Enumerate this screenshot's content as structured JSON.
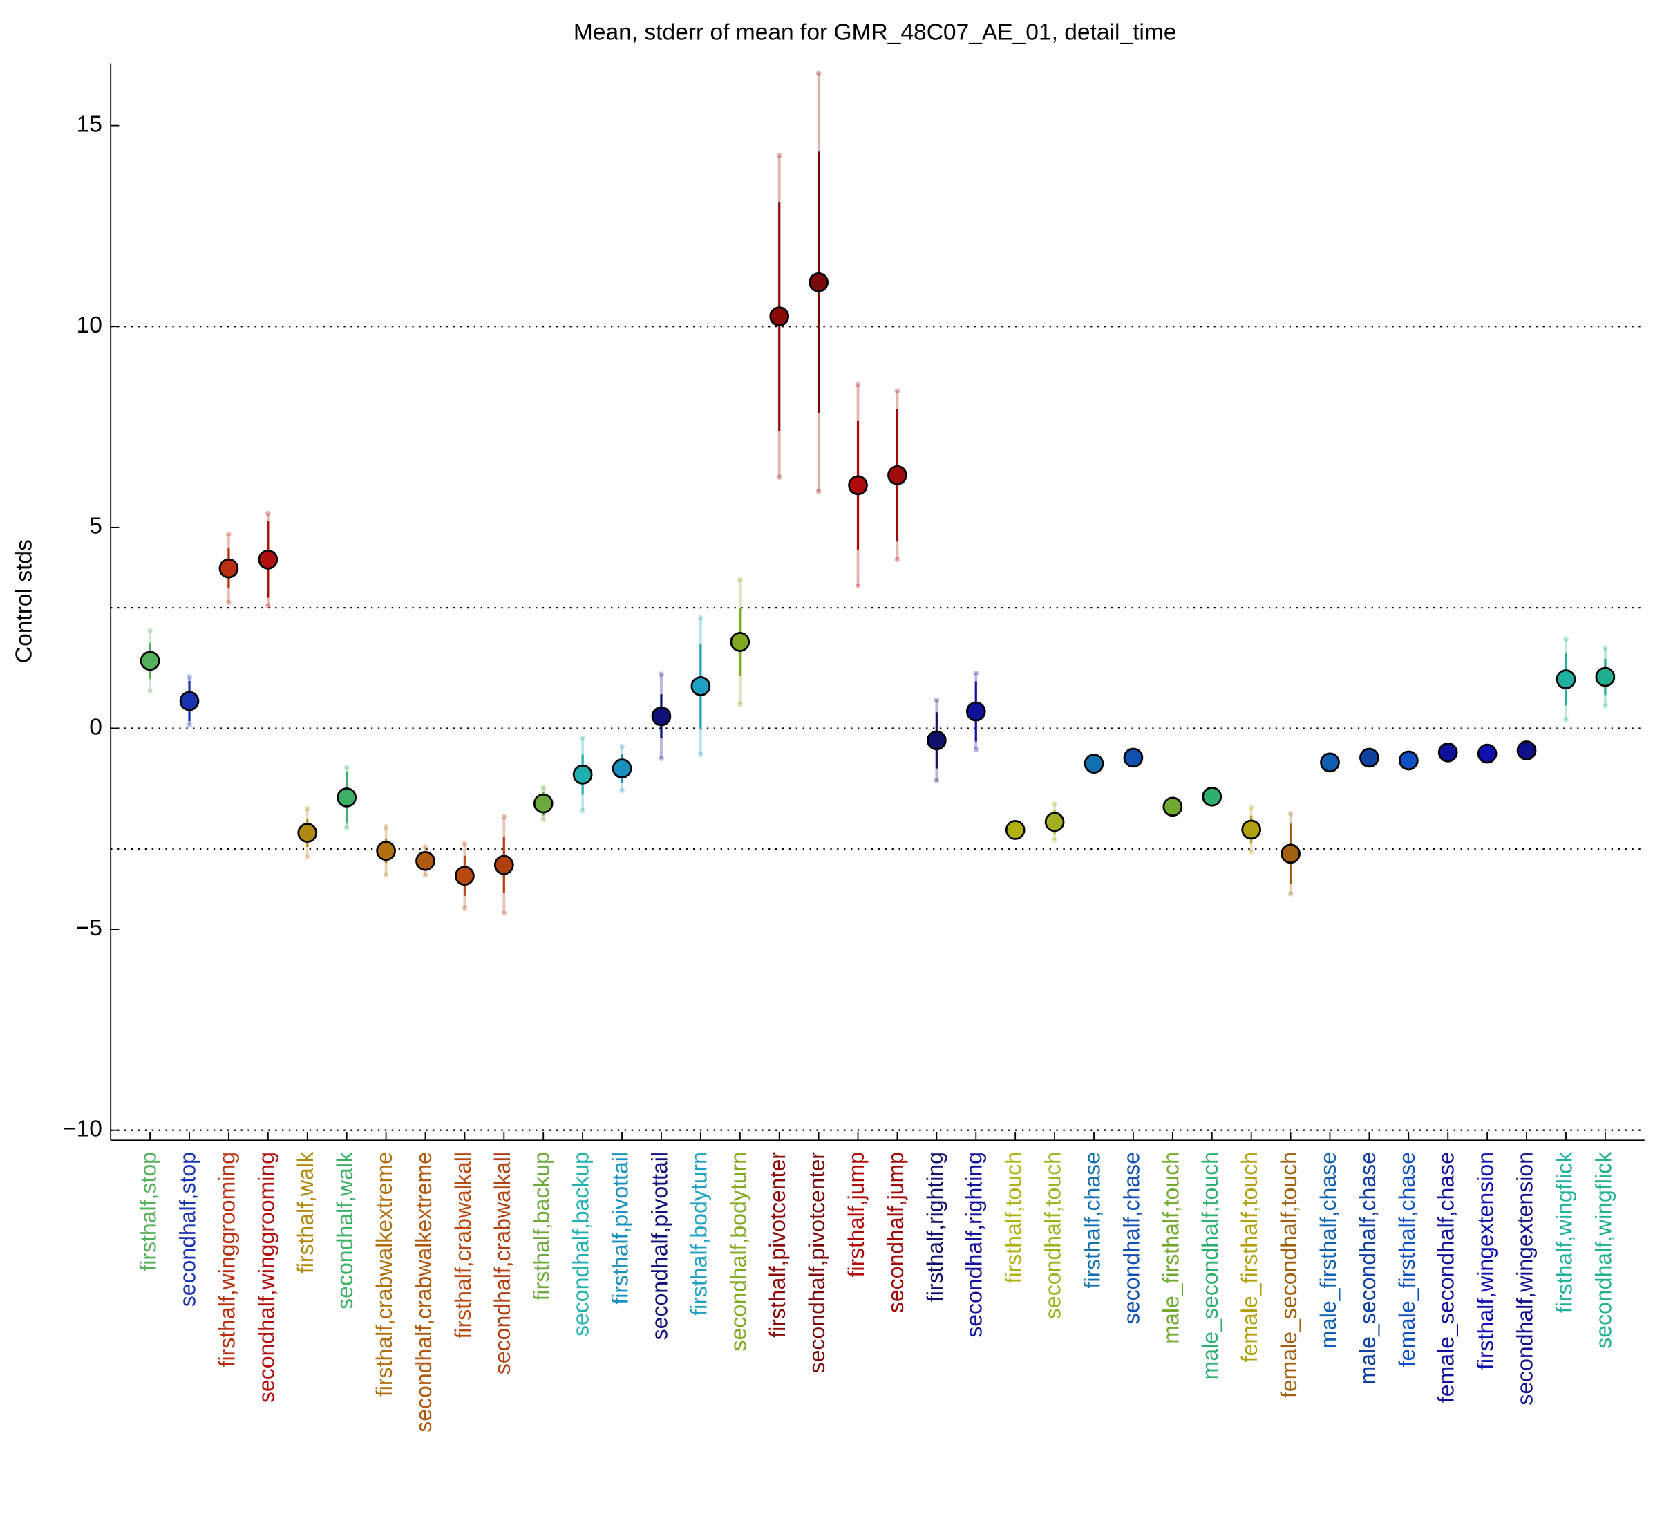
{
  "chart_data": {
    "type": "errorbar",
    "title": "Mean, stderr of mean for GMR_48C07_AE_01, detail_time",
    "ylabel": "Control stds",
    "ylim": [
      -10.25,
      16.55
    ],
    "yticks": [
      15,
      10,
      5,
      {
        "value": 0,
        "label": "0"
      },
      {
        "value": -5,
        "label": "−5"
      },
      {
        "value": -10,
        "label": "−10"
      }
    ],
    "grid_lines": [
      10,
      3,
      0,
      -3,
      -10
    ],
    "categories": [
      "firsthalf,stop",
      "secondhalf,stop",
      "firsthalf,winggrooming",
      "secondhalf,winggrooming",
      "firsthalf,walk",
      "secondhalf,walk",
      "firsthalf,crabwalkextreme",
      "secondhalf,crabwalkextreme",
      "firsthalf,crabwalkall",
      "secondhalf,crabwalkall",
      "firsthalf,backup",
      "secondhalf,backup",
      "firsthalf,pivottail",
      "secondhalf,pivottail",
      "firsthalf,bodyturn",
      "secondhalf,bodyturn",
      "firsthalf,pivotcenter",
      "secondhalf,pivotcenter",
      "firsthalf,jump",
      "secondhalf,jump",
      "firsthalf,righting",
      "secondhalf,righting",
      "firsthalf,touch",
      "secondhalf,touch",
      "firsthalf,chase",
      "secondhalf,chase",
      "male_firsthalf,touch",
      "male_secondhalf,touch",
      "female_firsthalf,touch",
      "female_secondhalf,touch",
      "male_firsthalf,chase",
      "male_secondhalf,chase",
      "female_firsthalf,chase",
      "female_secondhalf,chase",
      "firsthalf,wingextension",
      "secondhalf,wingextension",
      "firsthalf,wingflick",
      "secondhalf,wingflick"
    ],
    "values": [
      1.68,
      0.68,
      3.98,
      4.2,
      -2.6,
      -1.72,
      -3.05,
      -3.3,
      -3.67,
      -3.4,
      -1.87,
      -1.15,
      -1.0,
      0.3,
      1.05,
      2.15,
      10.25,
      11.1,
      6.05,
      6.3,
      -0.3,
      0.42,
      -2.53,
      -2.33,
      -0.88,
      -0.73,
      -1.95,
      -1.7,
      -2.52,
      -3.12,
      -0.85,
      -0.73,
      -0.8,
      -0.6,
      -0.63,
      -0.55,
      1.22,
      1.28
    ],
    "errors": [
      0.45,
      0.5,
      0.5,
      0.95,
      0.35,
      0.65,
      0.3,
      0.2,
      0.5,
      0.7,
      0.3,
      0.5,
      0.35,
      0.55,
      1.05,
      0.85,
      2.85,
      3.25,
      1.6,
      1.65,
      0.7,
      0.75,
      0.1,
      0.3,
      0.05,
      0.05,
      0.05,
      0.05,
      0.35,
      0.75,
      0.05,
      0.05,
      0.05,
      0.05,
      0.05,
      0.05,
      0.65,
      0.45
    ],
    "outer_errors": [
      0.75,
      0.6,
      0.85,
      1.15,
      0.6,
      0.75,
      0.6,
      0.35,
      0.8,
      1.2,
      0.4,
      0.9,
      0.55,
      1.05,
      1.7,
      1.55,
      4.0,
      5.2,
      2.5,
      2.1,
      1.0,
      0.95,
      0.1,
      0.45,
      0.05,
      0.05,
      0.05,
      0.05,
      0.55,
      1.0,
      0.05,
      0.05,
      0.05,
      0.05,
      0.05,
      0.05,
      1.0,
      0.72
    ],
    "colors": [
      "#55b05a",
      "#1a33b0",
      "#b83010",
      "#b01010",
      "#b08a10",
      "#3cb064",
      "#b07010",
      "#b05a10",
      "#b84a10",
      "#b04010",
      "#70a840",
      "#20b0b0",
      "#1a90c0",
      "#10107a",
      "#20a0c0",
      "#80a820",
      "#8a0a0a",
      "#7a0a0a",
      "#b00a0a",
      "#a00a0a",
      "#10106a",
      "#10109a",
      "#b0b010",
      "#a0b020",
      "#1070b0",
      "#1050b0",
      "#70a830",
      "#30b070",
      "#b0a010",
      "#a06010",
      "#1060b0",
      "#1040a0",
      "#1050c0",
      "#10109a",
      "#1010b0",
      "#10108a",
      "#20b0a0",
      "#20b090"
    ]
  }
}
